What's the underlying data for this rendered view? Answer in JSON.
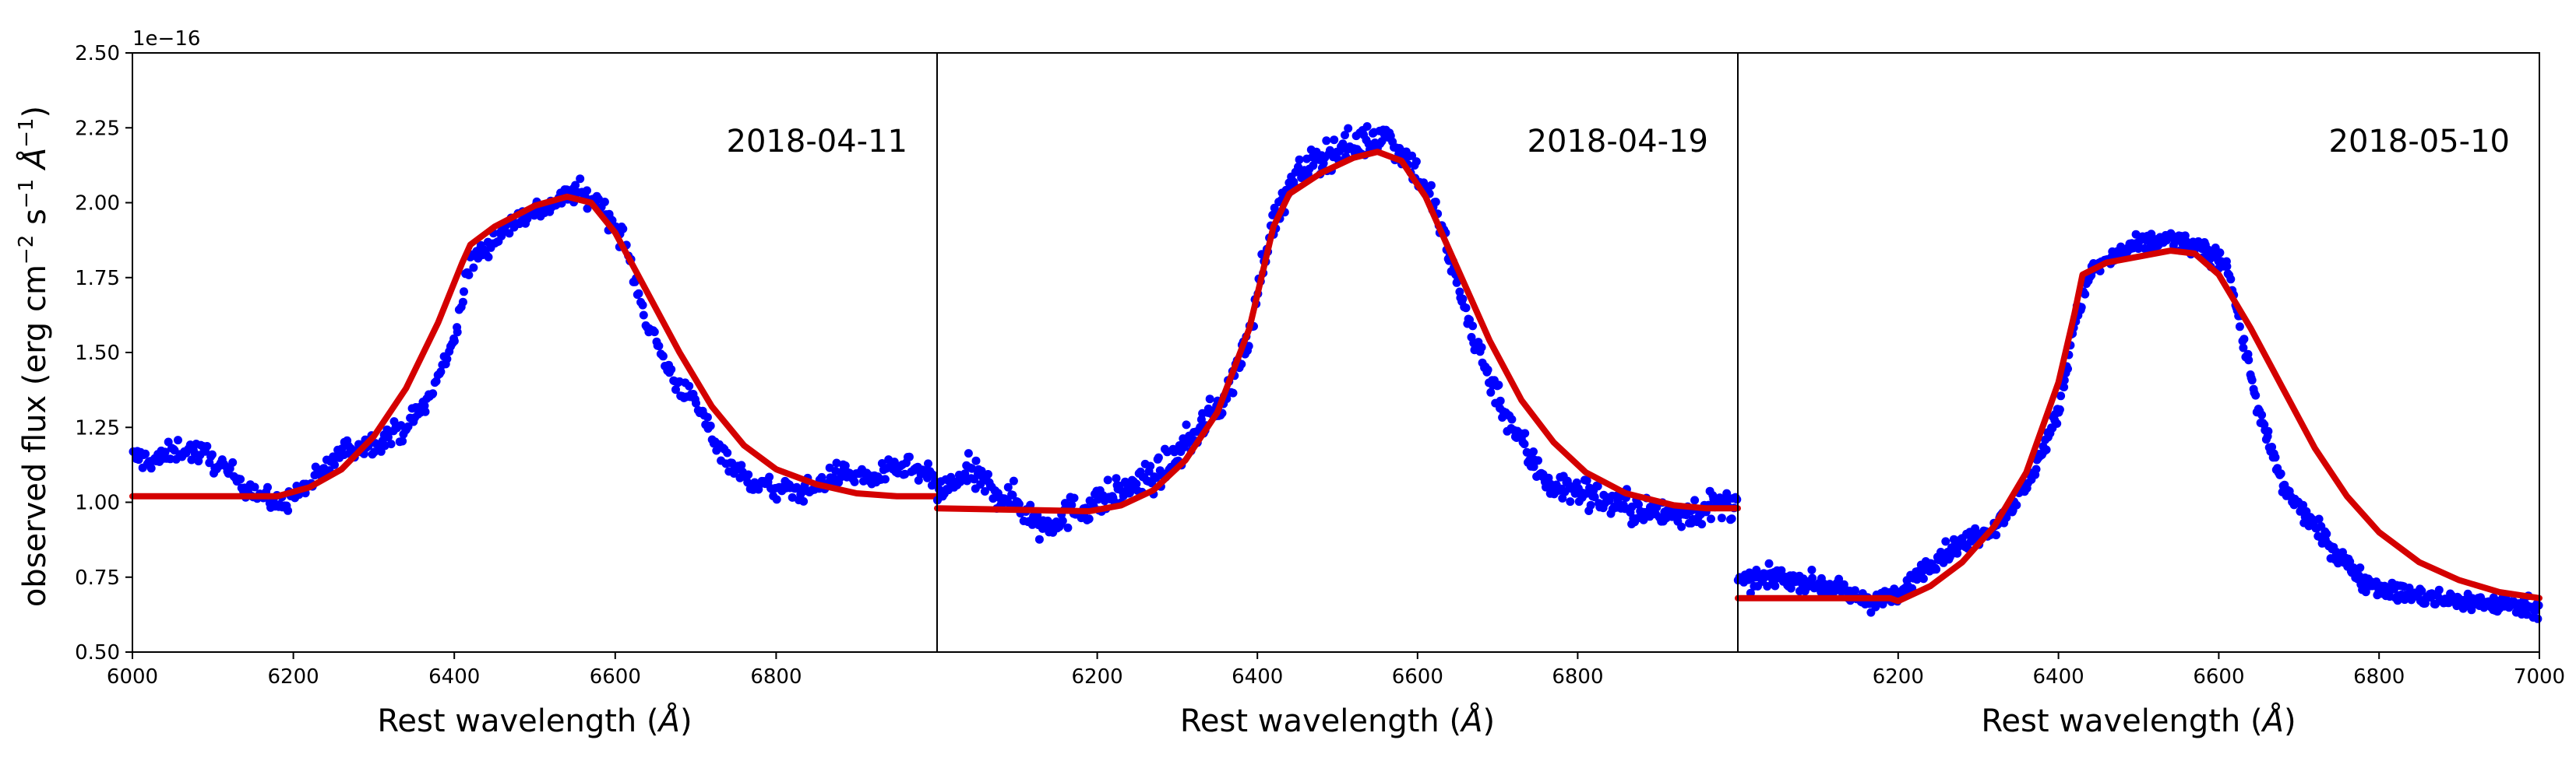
{
  "colors": {
    "points": "#0000ff",
    "fit": "#d40000",
    "axes": "#000000",
    "background": "#ffffff"
  },
  "chart_data": {
    "type": "scatter",
    "layout": "three panels side by side, shared y axis",
    "ylabel_parts": [
      "observed flux (erg cm",
      "−2",
      " s",
      "−1",
      " Å",
      "−1",
      ")"
    ],
    "offset_text": "1e−16",
    "y_scale_factor": 1e-16,
    "ylim": [
      0.5,
      2.5
    ],
    "yticks": [
      0.5,
      0.75,
      1.0,
      1.25,
      1.5,
      1.75,
      2.0,
      2.25,
      2.5
    ],
    "ytick_labels": [
      "0.50",
      "0.75",
      "1.00",
      "1.25",
      "1.50",
      "1.75",
      "2.00",
      "2.25",
      "2.50"
    ],
    "panels": [
      {
        "date": "2018-04-11",
        "xlabel_parts": [
          "Rest wavelength (",
          "Å",
          ")"
        ],
        "xlim": [
          6000,
          7000
        ],
        "xticks": [
          6000,
          6200,
          6400,
          6600,
          6800
        ],
        "xtick_labels": [
          "6000",
          "6200",
          "6400",
          "6600",
          "6800"
        ],
        "series": [
          {
            "name": "observed",
            "kind": "scatter",
            "anchors": [
              [
                6000,
                1.15
              ],
              [
                6030,
                1.14
              ],
              [
                6060,
                1.18
              ],
              [
                6090,
                1.16
              ],
              [
                6120,
                1.1
              ],
              [
                6150,
                1.04
              ],
              [
                6180,
                0.99
              ],
              [
                6200,
                1.02
              ],
              [
                6230,
                1.08
              ],
              [
                6260,
                1.17
              ],
              [
                6300,
                1.2
              ],
              [
                6340,
                1.25
              ],
              [
                6370,
                1.35
              ],
              [
                6400,
                1.55
              ],
              [
                6420,
                1.8
              ],
              [
                6450,
                1.88
              ],
              [
                6480,
                1.95
              ],
              [
                6520,
                1.99
              ],
              [
                6550,
                2.04
              ],
              [
                6580,
                2.0
              ],
              [
                6610,
                1.88
              ],
              [
                6640,
                1.6
              ],
              [
                6670,
                1.42
              ],
              [
                6700,
                1.33
              ],
              [
                6730,
                1.18
              ],
              [
                6760,
                1.08
              ],
              [
                6800,
                1.04
              ],
              [
                6840,
                1.04
              ],
              [
                6880,
                1.1
              ],
              [
                6920,
                1.08
              ],
              [
                6960,
                1.12
              ],
              [
                7000,
                1.07
              ]
            ],
            "noise": 0.035,
            "n_points": 520
          },
          {
            "name": "fit",
            "kind": "line",
            "points": [
              [
                6000,
                1.02
              ],
              [
                6180,
                1.02
              ],
              [
                6220,
                1.05
              ],
              [
                6260,
                1.11
              ],
              [
                6300,
                1.22
              ],
              [
                6340,
                1.38
              ],
              [
                6380,
                1.6
              ],
              [
                6410,
                1.8
              ],
              [
                6420,
                1.86
              ],
              [
                6450,
                1.92
              ],
              [
                6500,
                1.99
              ],
              [
                6540,
                2.02
              ],
              [
                6570,
                2.0
              ],
              [
                6600,
                1.9
              ],
              [
                6640,
                1.7
              ],
              [
                6680,
                1.5
              ],
              [
                6720,
                1.32
              ],
              [
                6760,
                1.19
              ],
              [
                6800,
                1.11
              ],
              [
                6850,
                1.06
              ],
              [
                6900,
                1.03
              ],
              [
                6950,
                1.02
              ],
              [
                7000,
                1.02
              ]
            ]
          }
        ]
      },
      {
        "date": "2018-04-19",
        "xlabel_parts": [
          "Rest wavelength (",
          "Å",
          ")"
        ],
        "xlim": [
          6000,
          7000
        ],
        "xticks": [
          6200,
          6400,
          6600,
          6800
        ],
        "xtick_labels": [
          "6200",
          "6400",
          "6600",
          "6800"
        ],
        "series": [
          {
            "name": "observed",
            "kind": "scatter",
            "anchors": [
              [
                6000,
                1.02
              ],
              [
                6040,
                1.1
              ],
              [
                6070,
                1.04
              ],
              [
                6100,
                1.0
              ],
              [
                6130,
                0.92
              ],
              [
                6160,
                0.96
              ],
              [
                6200,
                1.0
              ],
              [
                6240,
                1.05
              ],
              [
                6280,
                1.1
              ],
              [
                6320,
                1.22
              ],
              [
                6360,
                1.35
              ],
              [
                6390,
                1.55
              ],
              [
                6410,
                1.85
              ],
              [
                6430,
                2.0
              ],
              [
                6460,
                2.12
              ],
              [
                6500,
                2.18
              ],
              [
                6530,
                2.2
              ],
              [
                6560,
                2.23
              ],
              [
                6590,
                2.14
              ],
              [
                6620,
                2.0
              ],
              [
                6650,
                1.72
              ],
              [
                6680,
                1.48
              ],
              [
                6710,
                1.3
              ],
              [
                6740,
                1.15
              ],
              [
                6770,
                1.05
              ],
              [
                6800,
                1.04
              ],
              [
                6840,
                1.0
              ],
              [
                6880,
                0.97
              ],
              [
                6920,
                0.96
              ],
              [
                6960,
                0.98
              ],
              [
                7000,
                1.0
              ]
            ],
            "noise": 0.05,
            "n_points": 620
          },
          {
            "name": "fit",
            "kind": "line",
            "points": [
              [
                6000,
                0.98
              ],
              [
                6190,
                0.97
              ],
              [
                6230,
                0.99
              ],
              [
                6270,
                1.04
              ],
              [
                6310,
                1.14
              ],
              [
                6350,
                1.3
              ],
              [
                6390,
                1.58
              ],
              [
                6420,
                1.92
              ],
              [
                6440,
                2.03
              ],
              [
                6480,
                2.1
              ],
              [
                6520,
                2.15
              ],
              [
                6550,
                2.17
              ],
              [
                6580,
                2.14
              ],
              [
                6610,
                2.02
              ],
              [
                6650,
                1.78
              ],
              [
                6690,
                1.54
              ],
              [
                6730,
                1.34
              ],
              [
                6770,
                1.2
              ],
              [
                6810,
                1.1
              ],
              [
                6860,
                1.03
              ],
              [
                6920,
                0.99
              ],
              [
                6960,
                0.98
              ],
              [
                7000,
                0.98
              ]
            ]
          }
        ]
      },
      {
        "date": "2018-05-10",
        "xlabel_parts": [
          "Rest wavelength (",
          "Å",
          ")"
        ],
        "xlim": [
          6000,
          7000
        ],
        "xticks": [
          6200,
          6400,
          6600,
          6800,
          7000
        ],
        "xtick_labels": [
          "6200",
          "6400",
          "6600",
          "6800",
          "7000"
        ],
        "series": [
          {
            "name": "observed",
            "kind": "scatter",
            "anchors": [
              [
                6000,
                0.73
              ],
              [
                6040,
                0.75
              ],
              [
                6080,
                0.74
              ],
              [
                6120,
                0.71
              ],
              [
                6160,
                0.67
              ],
              [
                6200,
                0.68
              ],
              [
                6230,
                0.78
              ],
              [
                6270,
                0.85
              ],
              [
                6320,
                0.92
              ],
              [
                6360,
                1.05
              ],
              [
                6400,
                1.3
              ],
              [
                6420,
                1.6
              ],
              [
                6440,
                1.77
              ],
              [
                6470,
                1.82
              ],
              [
                6500,
                1.86
              ],
              [
                6540,
                1.88
              ],
              [
                6580,
                1.84
              ],
              [
                6610,
                1.8
              ],
              [
                6630,
                1.55
              ],
              [
                6650,
                1.3
              ],
              [
                6680,
                1.05
              ],
              [
                6710,
                0.95
              ],
              [
                6740,
                0.85
              ],
              [
                6780,
                0.74
              ],
              [
                6820,
                0.7
              ],
              [
                6860,
                0.68
              ],
              [
                6900,
                0.67
              ],
              [
                6950,
                0.66
              ],
              [
                7000,
                0.65
              ]
            ],
            "noise": 0.03,
            "n_points": 700
          },
          {
            "name": "fit",
            "kind": "line",
            "points": [
              [
                6000,
                0.68
              ],
              [
                6190,
                0.68
              ],
              [
                6200,
                0.67
              ],
              [
                6240,
                0.72
              ],
              [
                6280,
                0.8
              ],
              [
                6320,
                0.92
              ],
              [
                6360,
                1.1
              ],
              [
                6400,
                1.4
              ],
              [
                6420,
                1.63
              ],
              [
                6430,
                1.76
              ],
              [
                6460,
                1.8
              ],
              [
                6500,
                1.82
              ],
              [
                6540,
                1.84
              ],
              [
                6570,
                1.83
              ],
              [
                6600,
                1.76
              ],
              [
                6640,
                1.58
              ],
              [
                6680,
                1.38
              ],
              [
                6720,
                1.18
              ],
              [
                6760,
                1.02
              ],
              [
                6800,
                0.9
              ],
              [
                6850,
                0.8
              ],
              [
                6900,
                0.74
              ],
              [
                6950,
                0.7
              ],
              [
                7000,
                0.68
              ]
            ]
          }
        ]
      }
    ]
  }
}
